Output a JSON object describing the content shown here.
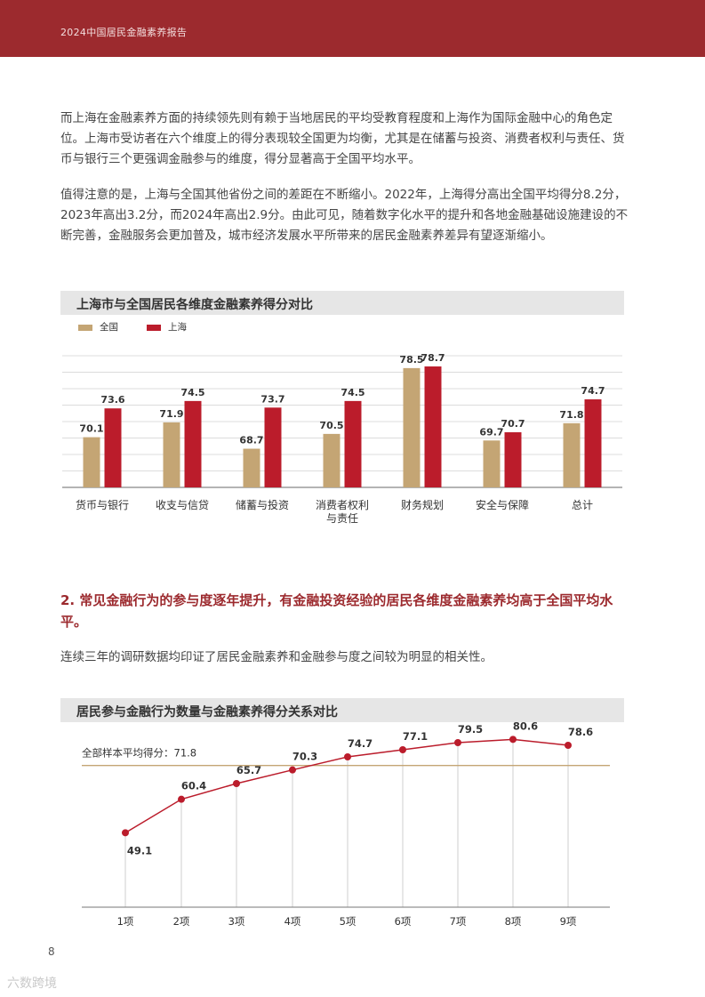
{
  "header": {
    "title": "2024中国居民金融素养报告"
  },
  "paragraphs": [
    "而上海在金融素养方面的持续领先则有赖于当地居民的平均受教育程度和上海作为国际金融中心的角色定位。上海市受访者在六个维度上的得分表现较全国更为均衡，尤其是在储蓄与投资、消费者权利与责任、货币与银行三个更强调金融参与的维度，得分显著高于全国平均水平。",
    "值得注意的是，上海与全国其他省份之间的差距在不断缩小。2022年，上海得分高出全国平均得分8.2分，2023年高出3.2分，而2024年高出2.9分。由此可见，随着数字化水平的提升和各地金融基础设施建设的不断完善，金融服务会更加普及，城市经济发展水平所带来的居民金融素养差异有望逐渐缩小。"
  ],
  "section": {
    "heading": "2. 常见金融行为的参与度逐年提升，有金融投资经验的居民各维度金融素养均高于全国平均水平。",
    "text": "连续三年的调研数据均印证了居民金融素养和金融参与度之间较为明显的相关性。"
  },
  "chart_data": [
    {
      "type": "bar",
      "title": "上海市与全国居民各维度金融素养得分对比",
      "categories": [
        "货币与银行",
        "收支与信贷",
        "储蓄与投资",
        "消费者权利与责任",
        "财务规划",
        "安全与保障",
        "总计"
      ],
      "category_lines": [
        [
          "货币与银行"
        ],
        [
          "收支与信贷"
        ],
        [
          "储蓄与投资"
        ],
        [
          "消费者权利",
          "与责任"
        ],
        [
          "财务规划"
        ],
        [
          "安全与保障"
        ],
        [
          "总计"
        ]
      ],
      "series": [
        {
          "name": "全国",
          "values": [
            70.1,
            71.9,
            68.7,
            70.5,
            78.5,
            69.7,
            71.8
          ],
          "color": "#c4a574"
        },
        {
          "name": "上海",
          "values": [
            73.6,
            74.5,
            73.7,
            74.5,
            78.7,
            70.7,
            74.7
          ],
          "color": "#bb1c2b"
        }
      ],
      "ylim": [
        64,
        80
      ],
      "grid": true,
      "legend": "top-left"
    },
    {
      "type": "line",
      "title": "居民参与金融行为数量与金融素养得分关系对比",
      "x": [
        "1项",
        "2项",
        "3项",
        "4项",
        "5项",
        "6项",
        "7项",
        "8项",
        "9项"
      ],
      "values": [
        49.1,
        60.4,
        65.7,
        70.3,
        74.7,
        77.1,
        79.5,
        80.6,
        78.6
      ],
      "reference": {
        "label": "全部样本平均得分：71.8",
        "value": 71.8,
        "color": "#c4a574"
      },
      "line_color": "#bb1c2b",
      "ylim": [
        24,
        84
      ]
    }
  ],
  "footer": {
    "page_number": "8",
    "watermark": "六数跨境"
  }
}
